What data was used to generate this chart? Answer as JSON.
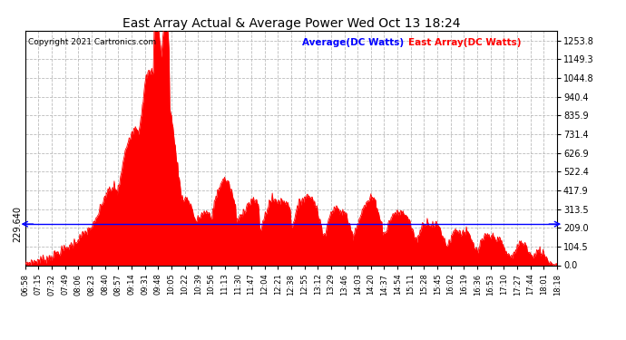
{
  "title": "East Array Actual & Average Power Wed Oct 13 18:24",
  "copyright": "Copyright 2021 Cartronics.com",
  "legend_avg": "Average(DC Watts)",
  "legend_east": "East Array(DC Watts)",
  "avg_value": 229.64,
  "yticks_right": [
    0.0,
    104.5,
    209.0,
    313.5,
    417.9,
    522.4,
    626.9,
    731.4,
    835.9,
    940.4,
    1044.8,
    1149.3,
    1253.8
  ],
  "yticks_left_label": "229.640",
  "ymax": 1310,
  "ymin": 0,
  "bg_color": "#ffffff",
  "fill_color": "#ff0000",
  "avg_line_color": "#0000ff",
  "grid_color": "#bbbbbb",
  "xtick_labels": [
    "06:58",
    "07:15",
    "07:32",
    "07:49",
    "08:06",
    "08:23",
    "08:40",
    "08:57",
    "09:14",
    "09:31",
    "09:48",
    "10:05",
    "10:22",
    "10:39",
    "10:56",
    "11:13",
    "11:30",
    "11:47",
    "12:04",
    "12:21",
    "12:38",
    "12:55",
    "13:12",
    "13:29",
    "13:46",
    "14:03",
    "14:20",
    "14:37",
    "14:54",
    "15:11",
    "15:28",
    "15:45",
    "16:02",
    "16:19",
    "16:36",
    "16:53",
    "17:10",
    "17:27",
    "17:44",
    "18:01",
    "18:18"
  ]
}
